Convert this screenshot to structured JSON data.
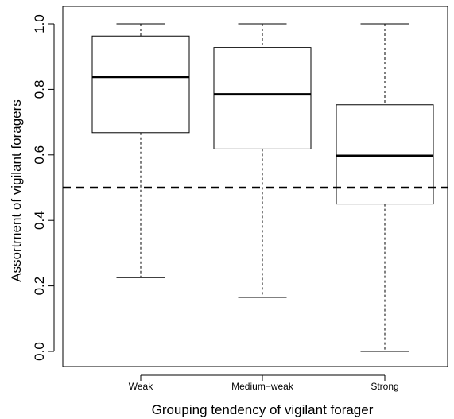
{
  "chart_data": {
    "type": "box",
    "title": "",
    "xlabel": "Grouping tendency of vigilant forager",
    "ylabel": "Assortment of vigilant foragers",
    "ylim": [
      0.0,
      1.0
    ],
    "yticks": [
      "0.0",
      "0.2",
      "0.4",
      "0.6",
      "0.8",
      "1.0"
    ],
    "grid": false,
    "categories": [
      "Weak",
      "Medium−weak",
      "Strong"
    ],
    "boxes": [
      {
        "category": "Weak",
        "min": 0.225,
        "q1": 0.668,
        "median": 0.838,
        "q3": 0.963,
        "max": 1.0
      },
      {
        "category": "Medium−weak",
        "min": 0.165,
        "q1": 0.618,
        "median": 0.785,
        "q3": 0.928,
        "max": 1.0
      },
      {
        "category": "Strong",
        "min": 0.0,
        "q1": 0.45,
        "median": 0.597,
        "q3": 0.753,
        "max": 1.0
      }
    ],
    "reference_line": {
      "y": 0.5,
      "style": "dashed"
    }
  }
}
